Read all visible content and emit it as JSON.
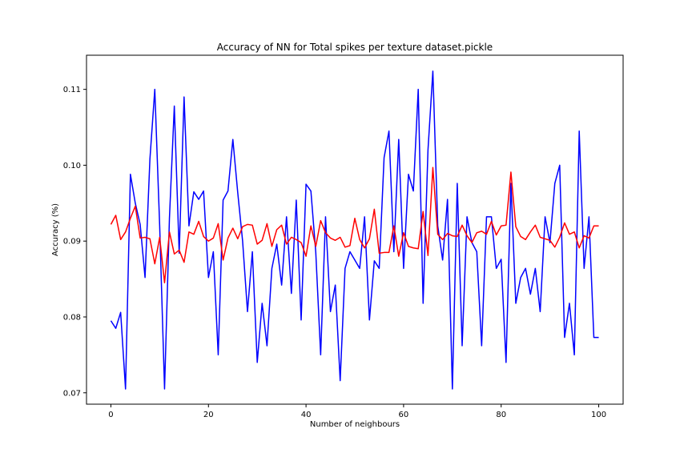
{
  "chart_data": {
    "type": "line",
    "title": "Accuracy of NN for Total spikes per texture dataset.pickle",
    "xlabel": "Number of neighbours",
    "ylabel": "Accuracy (%)",
    "xlim": [
      -5,
      105
    ],
    "ylim": [
      0.0685,
      0.1145
    ],
    "xticks": [
      0,
      20,
      40,
      60,
      80,
      100
    ],
    "yticks": [
      0.07,
      0.08,
      0.09,
      0.1,
      0.11
    ],
    "ytick_labels": [
      "0.07",
      "0.08",
      "0.09",
      "0.10",
      "0.11"
    ],
    "grid": false,
    "legend": false,
    "series": [
      {
        "color": "#0000ff",
        "x": [
          0,
          1,
          2,
          3,
          4,
          5,
          6,
          7,
          8,
          9,
          10,
          11,
          12,
          13,
          14,
          15,
          16,
          17,
          18,
          19,
          20,
          21,
          22,
          23,
          24,
          25,
          26,
          27,
          28,
          29,
          30,
          31,
          32,
          33,
          34,
          35,
          36,
          37,
          38,
          39,
          40,
          41,
          42,
          43,
          44,
          45,
          46,
          47,
          48,
          49,
          50,
          51,
          52,
          53,
          54,
          55,
          56,
          57,
          58,
          59,
          60,
          61,
          62,
          63,
          64,
          65,
          66,
          67,
          68,
          69,
          70,
          71,
          72,
          73,
          74,
          75,
          76,
          77,
          78,
          79,
          80,
          81,
          82,
          83,
          84,
          85,
          86,
          87,
          88,
          89,
          90,
          91,
          92,
          93,
          94,
          95,
          96,
          97,
          98,
          99,
          100
        ],
        "values": [
          0.0795,
          0.0785,
          0.0806,
          0.0705,
          0.0988,
          0.095,
          0.0922,
          0.0852,
          0.1008,
          0.11,
          0.092,
          0.0705,
          0.093,
          0.1078,
          0.0884,
          0.109,
          0.092,
          0.0965,
          0.0955,
          0.0966,
          0.0852,
          0.0886,
          0.075,
          0.0954,
          0.0966,
          0.1034,
          0.0964,
          0.09,
          0.0807,
          0.0886,
          0.074,
          0.0818,
          0.0762,
          0.0864,
          0.0896,
          0.0842,
          0.0932,
          0.0831,
          0.0954,
          0.0796,
          0.0975,
          0.0966,
          0.0885,
          0.075,
          0.0932,
          0.0807,
          0.0842,
          0.0716,
          0.0864,
          0.0886,
          0.0875,
          0.0864,
          0.0932,
          0.0796,
          0.0874,
          0.0864,
          0.101,
          0.1045,
          0.0886,
          0.1034,
          0.0864,
          0.0988,
          0.0966,
          0.11,
          0.0818,
          0.102,
          0.1124,
          0.092,
          0.0875,
          0.0955,
          0.0705,
          0.0976,
          0.0762,
          0.0932,
          0.0898,
          0.0886,
          0.0762,
          0.0932,
          0.0932,
          0.0864,
          0.0876,
          0.074,
          0.0976,
          0.0818,
          0.0852,
          0.0864,
          0.083,
          0.0864,
          0.0807,
          0.0932,
          0.0898,
          0.0976,
          0.1,
          0.0773,
          0.0818,
          0.075,
          0.1045,
          0.0864,
          0.0932,
          0.0773,
          0.0773
        ]
      },
      {
        "color": "#ff0000",
        "x": [
          0,
          1,
          2,
          3,
          4,
          5,
          6,
          7,
          8,
          9,
          10,
          11,
          12,
          13,
          14,
          15,
          16,
          17,
          18,
          19,
          20,
          21,
          22,
          23,
          24,
          25,
          26,
          27,
          28,
          29,
          30,
          31,
          32,
          33,
          34,
          35,
          36,
          37,
          38,
          39,
          40,
          41,
          42,
          43,
          44,
          45,
          46,
          47,
          48,
          49,
          50,
          51,
          52,
          53,
          54,
          55,
          56,
          57,
          58,
          59,
          60,
          61,
          62,
          63,
          64,
          65,
          66,
          67,
          68,
          69,
          70,
          71,
          72,
          73,
          74,
          75,
          76,
          77,
          78,
          79,
          80,
          81,
          82,
          83,
          84,
          85,
          86,
          87,
          88,
          89,
          90,
          91,
          92,
          93,
          94,
          95,
          96,
          97,
          98,
          99,
          100
        ],
        "values": [
          0.0922,
          0.0934,
          0.0902,
          0.0912,
          0.093,
          0.0946,
          0.0904,
          0.0905,
          0.0903,
          0.087,
          0.0905,
          0.0845,
          0.0912,
          0.0883,
          0.0888,
          0.0872,
          0.0912,
          0.0909,
          0.0926,
          0.0906,
          0.09,
          0.0904,
          0.0923,
          0.0875,
          0.0904,
          0.0917,
          0.0903,
          0.0919,
          0.0922,
          0.0921,
          0.0896,
          0.0901,
          0.0923,
          0.0893,
          0.0915,
          0.0921,
          0.0896,
          0.0905,
          0.0902,
          0.0898,
          0.088,
          0.092,
          0.0893,
          0.0927,
          0.0911,
          0.0904,
          0.0901,
          0.0905,
          0.0892,
          0.0894,
          0.093,
          0.0902,
          0.0891,
          0.0903,
          0.0942,
          0.0884,
          0.0885,
          0.0885,
          0.092,
          0.088,
          0.0911,
          0.0893,
          0.0891,
          0.089,
          0.0939,
          0.0881,
          0.0997,
          0.0909,
          0.0902,
          0.091,
          0.0907,
          0.0906,
          0.0921,
          0.0907,
          0.0898,
          0.0911,
          0.0913,
          0.0909,
          0.0926,
          0.0908,
          0.092,
          0.0921,
          0.0991,
          0.0919,
          0.0906,
          0.0902,
          0.0912,
          0.0921,
          0.0905,
          0.0903,
          0.0901,
          0.0892,
          0.0905,
          0.0924,
          0.0909,
          0.0912,
          0.0891,
          0.0907,
          0.0904,
          0.092,
          0.092
        ]
      }
    ]
  }
}
